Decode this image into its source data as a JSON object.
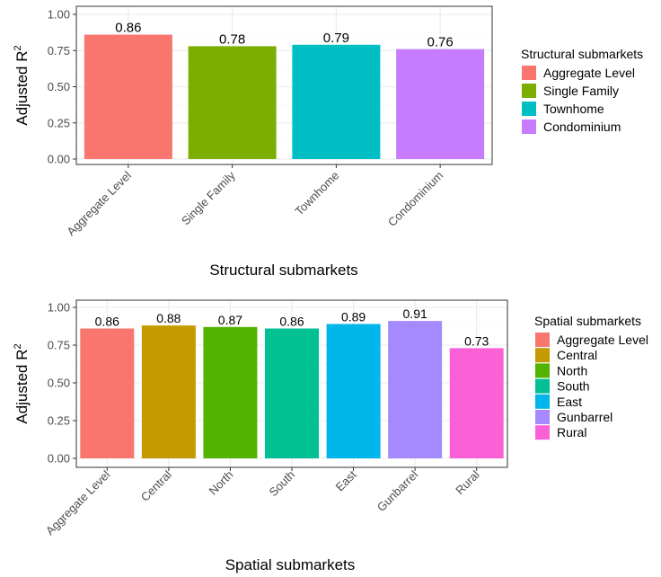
{
  "chart_data": [
    {
      "type": "bar",
      "categories": [
        "Aggregate Level",
        "Single Family",
        "Townhome",
        "Condominium"
      ],
      "values": [
        0.86,
        0.78,
        0.79,
        0.76
      ],
      "value_labels": [
        "0.86",
        "0.78",
        "0.79",
        "0.76"
      ],
      "colors": [
        "#F8766D",
        "#7CAE00",
        "#00BFC4",
        "#C77CFF"
      ],
      "xlabel": "Structural submarkets",
      "ylabel": "Adjusted R",
      "ylabel_superscript": "2",
      "ylim": [
        0,
        1
      ],
      "yticks": [
        "0.00",
        "0.25",
        "0.50",
        "0.75",
        "1.00"
      ],
      "ytick_values": [
        0,
        0.25,
        0.5,
        0.75,
        1.0
      ],
      "grid": true,
      "legend": {
        "title": "Structural submarkets",
        "placement": "right"
      }
    },
    {
      "type": "bar",
      "categories": [
        "Aggregate Level",
        "Central",
        "North",
        "South",
        "East",
        "Gunbarrel",
        "Rural"
      ],
      "values": [
        0.86,
        0.88,
        0.87,
        0.86,
        0.89,
        0.91,
        0.73
      ],
      "value_labels": [
        "0.86",
        "0.88",
        "0.87",
        "0.86",
        "0.89",
        "0.91",
        "0.73"
      ],
      "colors": [
        "#F8766D",
        "#C49A00",
        "#53B400",
        "#00C094",
        "#00B6EB",
        "#A58AFF",
        "#FB61D7"
      ],
      "xlabel": "Spatial submarkets",
      "ylabel": "Adjusted R",
      "ylabel_superscript": "2",
      "ylim": [
        0,
        1
      ],
      "yticks": [
        "0.00",
        "0.25",
        "0.50",
        "0.75",
        "1.00"
      ],
      "ytick_values": [
        0,
        0.25,
        0.5,
        0.75,
        1.0
      ],
      "grid": true,
      "legend": {
        "title": "Spatial submarkets",
        "placement": "right"
      }
    }
  ]
}
